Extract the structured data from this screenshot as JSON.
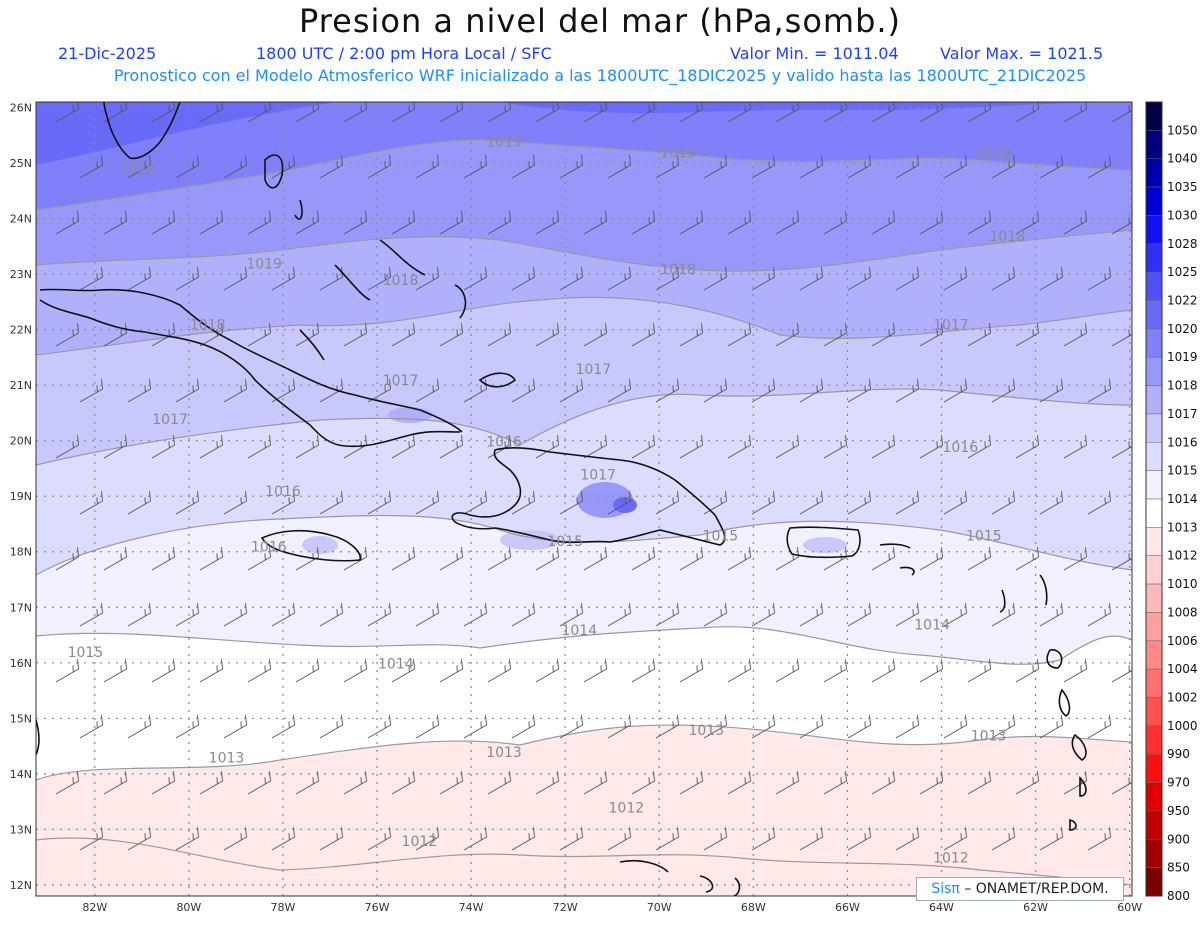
{
  "header": {
    "title": "Presion a nivel del mar (hPa,somb.)",
    "date": "21-Dic-2025",
    "time": "1800 UTC / 2:00 pm Hora Local / SFC",
    "min_label": "Valor Min. = 1011.04",
    "max_label": "Valor Max. = 1021.5",
    "subtitle": "Pronostico con el Modelo Atmosferico WRF inicializado a las 1800UTC_18DIC2025 y valido hasta las  1800UTC_21DIC2025"
  },
  "map": {
    "lat_labels": [
      "26N",
      "25N",
      "24N",
      "23N",
      "22N",
      "21N",
      "20N",
      "19N",
      "18N",
      "17N",
      "16N",
      "15N",
      "14N",
      "13N",
      "12N"
    ],
    "lon_labels": [
      "82W",
      "80W",
      "78W",
      "76W",
      "74W",
      "72W",
      "70W",
      "68W",
      "66W",
      "64W",
      "62W",
      "60W"
    ],
    "isobar_labels": [
      {
        "text": "1020",
        "lon": -81.1,
        "lat": 24.8
      },
      {
        "text": "1019",
        "lon": -73.3,
        "lat": 25.3
      },
      {
        "text": "1019",
        "lon": -69.6,
        "lat": 25.1
      },
      {
        "text": "1019",
        "lon": -62.9,
        "lat": 25.1
      },
      {
        "text": "1019",
        "lon": -78.4,
        "lat": 23.1
      },
      {
        "text": "1018",
        "lon": -75.5,
        "lat": 22.8
      },
      {
        "text": "1018",
        "lon": -69.6,
        "lat": 23.0
      },
      {
        "text": "1018",
        "lon": -62.6,
        "lat": 23.6
      },
      {
        "text": "1018",
        "lon": -79.6,
        "lat": 22.0
      },
      {
        "text": "1017",
        "lon": -75.5,
        "lat": 21.0
      },
      {
        "text": "1017",
        "lon": -71.4,
        "lat": 21.2
      },
      {
        "text": "1017",
        "lon": -63.8,
        "lat": 22.0
      },
      {
        "text": "1017",
        "lon": -80.4,
        "lat": 20.3
      },
      {
        "text": "1017",
        "lon": -71.3,
        "lat": 19.3
      },
      {
        "text": "1016",
        "lon": -78.0,
        "lat": 19.0
      },
      {
        "text": "1016",
        "lon": -63.6,
        "lat": 19.8
      },
      {
        "text": "1016",
        "lon": -73.3,
        "lat": 19.9
      },
      {
        "text": "1016",
        "lon": -78.3,
        "lat": 18.0
      },
      {
        "text": "1015",
        "lon": -72.0,
        "lat": 18.1
      },
      {
        "text": "1015",
        "lon": -68.7,
        "lat": 18.2
      },
      {
        "text": "1015",
        "lon": -63.1,
        "lat": 18.2
      },
      {
        "text": "1015",
        "lon": -82.2,
        "lat": 16.1
      },
      {
        "text": "1014",
        "lon": -71.7,
        "lat": 16.5
      },
      {
        "text": "1014",
        "lon": -64.2,
        "lat": 16.6
      },
      {
        "text": "1014",
        "lon": -75.6,
        "lat": 15.9
      },
      {
        "text": "1013",
        "lon": -69.0,
        "lat": 14.7
      },
      {
        "text": "1013",
        "lon": -63.0,
        "lat": 14.6
      },
      {
        "text": "1013",
        "lon": -73.3,
        "lat": 14.3
      },
      {
        "text": "1013",
        "lon": -79.2,
        "lat": 14.2
      },
      {
        "text": "1012",
        "lon": -70.7,
        "lat": 13.3
      },
      {
        "text": "1012",
        "lon": -75.1,
        "lat": 12.7
      },
      {
        "text": "1012",
        "lon": -63.8,
        "lat": 12.4
      }
    ]
  },
  "colorbar": {
    "labels": [
      "1050",
      "1040",
      "1035",
      "1030",
      "1028",
      "1025",
      "1022",
      "1020",
      "1019",
      "1018",
      "1017",
      "1016",
      "1015",
      "1014",
      "1013",
      "1012",
      "1010",
      "1008",
      "1006",
      "1004",
      "1002",
      "1000",
      "990",
      "970",
      "950",
      "900",
      "850",
      "800"
    ],
    "colors": [
      "#000048",
      "#00007a",
      "#0000a8",
      "#0000d0",
      "#1010f0",
      "#3030f4",
      "#5050f6",
      "#6a6af8",
      "#8080fa",
      "#9898fb",
      "#b0b0fc",
      "#c8c8fd",
      "#dcdcfe",
      "#f0f0ff",
      "#ffffff",
      "#ffe8e8",
      "#ffd0d0",
      "#ffb8b8",
      "#ffa0a0",
      "#ff8888",
      "#ff7070",
      "#ff5050",
      "#ff3030",
      "#ff1010",
      "#e00000",
      "#c00000",
      "#a00000",
      "#7a0000"
    ]
  },
  "credit": {
    "brand": "Sisπ",
    "org": " – ONAMET/REP.DOM."
  }
}
